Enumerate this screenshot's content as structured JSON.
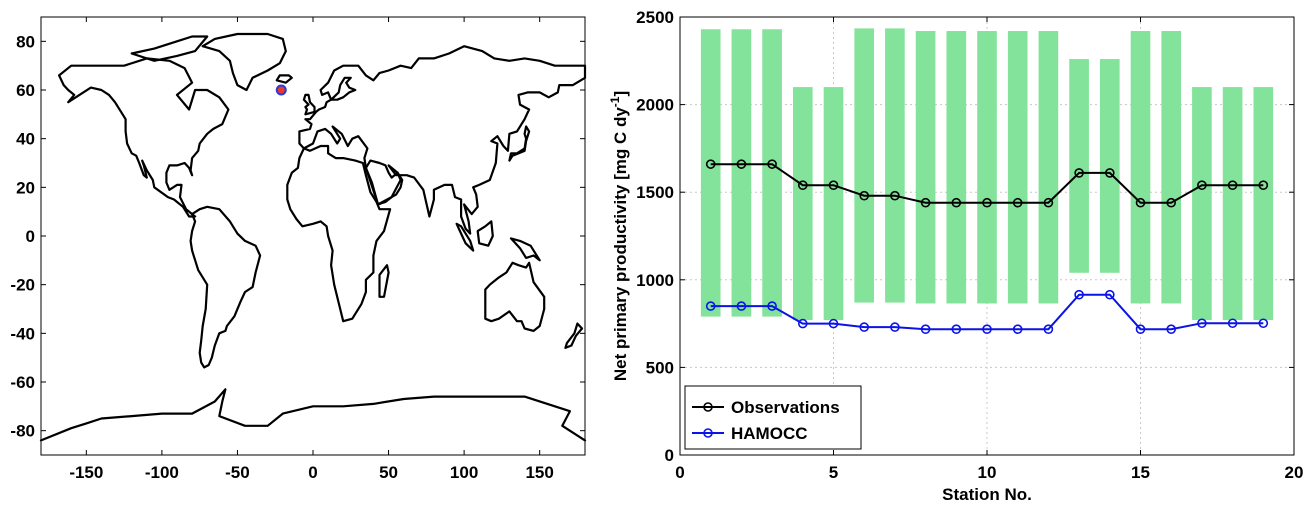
{
  "chart_data": [
    {
      "type": "map",
      "xlim": [
        -180,
        180
      ],
      "ylim": [
        -90,
        90
      ],
      "xticks": [
        -150,
        -100,
        -50,
        0,
        50,
        100,
        150
      ],
      "yticks": [
        -80,
        -60,
        -40,
        -20,
        0,
        20,
        40,
        60,
        80
      ],
      "xtick_labels": [
        "-150",
        "-100",
        "-50",
        "0",
        "50",
        "100",
        "150"
      ],
      "ytick_labels": [
        "-80",
        "-60",
        "-40",
        "-20",
        "0",
        "20",
        "40",
        "60",
        "80"
      ],
      "grid": false,
      "marker": {
        "lon": -21,
        "lat": 60,
        "fill": "#e8392b",
        "edge": "#2a3bd6"
      }
    },
    {
      "type": "line",
      "xlabel": "Station No.",
      "ylabel_main": "Net primary productivity [mg C dy",
      "ylabel_sup": "-1",
      "ylabel_end": "]",
      "xlim": [
        0,
        20
      ],
      "ylim": [
        0,
        2500
      ],
      "xticks": [
        0,
        5,
        10,
        15,
        20
      ],
      "yticks": [
        0,
        500,
        1000,
        1500,
        2000,
        2500
      ],
      "xtick_labels": [
        "0",
        "5",
        "10",
        "15",
        "20"
      ],
      "ytick_labels": [
        "0",
        "500",
        "1000",
        "1500",
        "2000",
        "2500"
      ],
      "grid": true,
      "legend_position": "bottom-left",
      "x": [
        1,
        2,
        3,
        4,
        5,
        6,
        7,
        8,
        9,
        10,
        11,
        12,
        13,
        14,
        15,
        16,
        17,
        18,
        19
      ],
      "range_bars": {
        "color": "#84e39a",
        "low": [
          790,
          790,
          790,
          770,
          770,
          870,
          870,
          865,
          865,
          865,
          865,
          865,
          1040,
          1040,
          865,
          865,
          770,
          770,
          770
        ],
        "high": [
          2430,
          2430,
          2430,
          2100,
          2100,
          2435,
          2435,
          2420,
          2420,
          2420,
          2420,
          2420,
          2260,
          2260,
          2420,
          2420,
          2100,
          2100,
          2100
        ]
      },
      "series": [
        {
          "name": "Observations",
          "color": "#000000",
          "values": [
            1660,
            1660,
            1660,
            1540,
            1540,
            1480,
            1480,
            1440,
            1440,
            1440,
            1440,
            1440,
            1610,
            1610,
            1440,
            1440,
            1540,
            1540,
            1540
          ]
        },
        {
          "name": "HAMOCC",
          "color": "#0a14e6",
          "values": [
            850,
            850,
            850,
            750,
            750,
            730,
            730,
            718,
            718,
            718,
            718,
            718,
            915,
            915,
            718,
            718,
            752,
            752,
            752
          ]
        }
      ]
    }
  ]
}
